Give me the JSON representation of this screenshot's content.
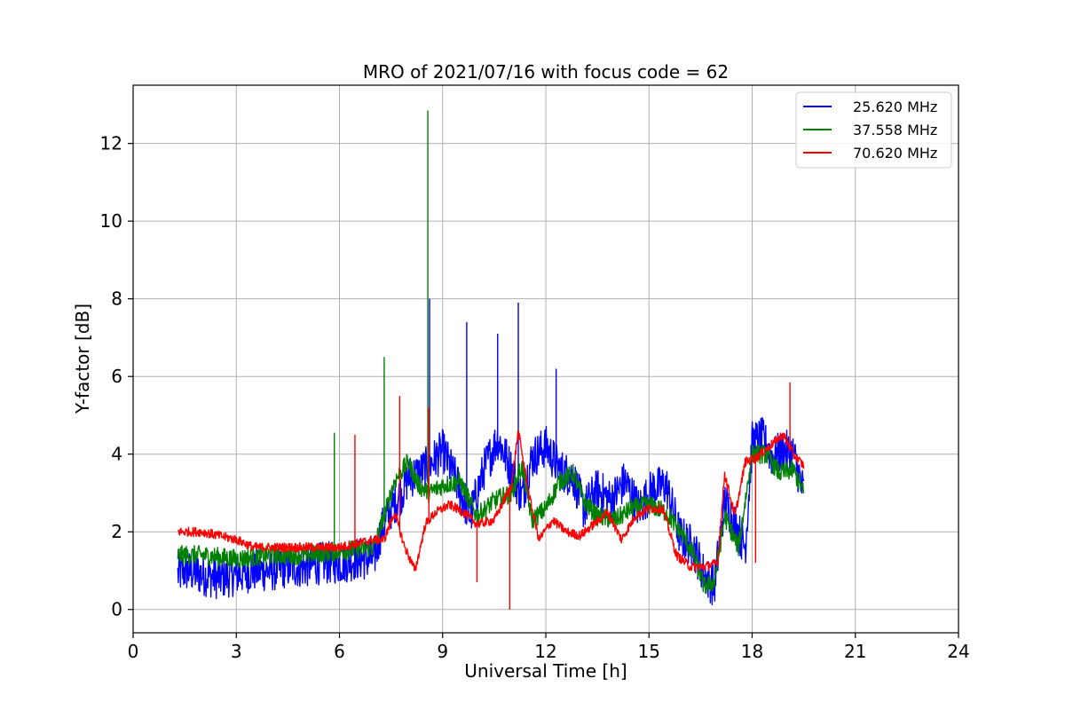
{
  "chart_data": {
    "type": "line",
    "title": "MRO of 2021/07/16 with focus code = 62",
    "xlabel": "Universal Time [h]",
    "ylabel": "Y-factor [dB]",
    "xlim": [
      0,
      24
    ],
    "ylim": [
      -0.6,
      13.5
    ],
    "xticks": [
      0,
      3,
      6,
      9,
      12,
      15,
      18,
      21,
      24
    ],
    "yticks": [
      0,
      2,
      4,
      6,
      8,
      10,
      12
    ],
    "grid": true,
    "legend_position": "top-right",
    "series": [
      {
        "name": "25.620 MHz",
        "color": "#0000ff",
        "noise": 0.55,
        "x": [
          1.3,
          1.5,
          2.0,
          2.5,
          3.0,
          3.5,
          4.0,
          4.5,
          5.0,
          5.5,
          6.0,
          6.5,
          7.0,
          7.2,
          7.5,
          7.8,
          8.0,
          8.3,
          8.6,
          9.0,
          9.4,
          9.8,
          10.2,
          10.6,
          11.0,
          11.3,
          11.6,
          12.0,
          12.4,
          12.8,
          13.1,
          13.5,
          13.9,
          14.3,
          14.7,
          15.1,
          15.5,
          15.9,
          16.3,
          16.6,
          16.9,
          17.2,
          17.5,
          17.8,
          18.0,
          18.3,
          18.6,
          18.9,
          19.2,
          19.5
        ],
        "y": [
          0.9,
          1.0,
          0.9,
          0.8,
          0.9,
          1.0,
          1.0,
          1.1,
          1.1,
          1.2,
          1.2,
          1.3,
          1.3,
          2.0,
          2.6,
          3.0,
          3.4,
          3.5,
          3.7,
          4.1,
          3.3,
          2.4,
          3.6,
          4.4,
          3.6,
          2.9,
          3.9,
          4.2,
          3.6,
          3.4,
          2.6,
          3.1,
          2.8,
          3.3,
          2.6,
          3.1,
          3.2,
          1.9,
          1.6,
          0.9,
          0.6,
          2.8,
          2.2,
          1.6,
          4.3,
          4.4,
          3.9,
          4.1,
          4.0,
          3.0
        ]
      },
      {
        "name": "37.558 MHz",
        "color": "#008000",
        "noise": 0.25,
        "x": [
          1.3,
          2.0,
          3.0,
          4.0,
          5.0,
          6.0,
          7.0,
          7.3,
          7.6,
          8.0,
          8.3,
          8.6,
          9.0,
          9.5,
          10.0,
          10.5,
          11.0,
          11.3,
          11.6,
          12.0,
          12.4,
          12.8,
          13.1,
          13.5,
          14.0,
          14.5,
          15.0,
          15.5,
          16.0,
          16.3,
          16.6,
          16.9,
          17.2,
          17.6,
          18.0,
          18.4,
          18.8,
          19.2,
          19.5
        ],
        "y": [
          1.4,
          1.4,
          1.3,
          1.4,
          1.4,
          1.5,
          1.6,
          2.4,
          3.3,
          3.8,
          3.2,
          3.0,
          3.2,
          3.3,
          2.4,
          2.8,
          3.0,
          3.7,
          2.3,
          2.6,
          3.3,
          3.5,
          2.8,
          2.4,
          2.3,
          2.6,
          2.7,
          2.5,
          1.9,
          1.4,
          0.6,
          0.7,
          2.4,
          1.6,
          4.0,
          4.0,
          3.5,
          3.6,
          3.0
        ]
      },
      {
        "name": "70.620 MHz",
        "color": "#ff0000",
        "noise": 0.12,
        "x": [
          1.3,
          2.0,
          3.0,
          3.5,
          4.0,
          5.0,
          6.0,
          7.0,
          7.3,
          7.6,
          7.9,
          8.2,
          8.5,
          8.8,
          9.2,
          9.6,
          10.0,
          10.5,
          11.0,
          11.2,
          11.5,
          11.8,
          12.2,
          12.6,
          13.0,
          13.4,
          13.8,
          14.2,
          14.6,
          15.0,
          15.4,
          15.8,
          16.2,
          16.6,
          17.0,
          17.2,
          17.5,
          17.8,
          18.1,
          18.5,
          18.9,
          19.2,
          19.5
        ],
        "y": [
          2.0,
          2.0,
          1.8,
          1.6,
          1.6,
          1.6,
          1.6,
          1.8,
          1.8,
          2.5,
          1.6,
          1.0,
          2.2,
          2.5,
          2.7,
          2.5,
          2.2,
          2.3,
          3.2,
          4.6,
          3.0,
          1.8,
          2.3,
          2.0,
          1.9,
          2.2,
          2.5,
          1.8,
          2.4,
          2.6,
          2.6,
          1.4,
          1.1,
          1.1,
          1.2,
          3.5,
          2.4,
          3.8,
          3.9,
          4.2,
          4.5,
          4.0,
          3.7
        ]
      }
    ],
    "spikes": [
      {
        "series": 1,
        "x": 5.85,
        "y": 4.55
      },
      {
        "series": 1,
        "x": 7.3,
        "y": 6.5
      },
      {
        "series": 1,
        "x": 8.57,
        "y": 12.85
      },
      {
        "series": 0,
        "x": 8.62,
        "y": 8.0
      },
      {
        "series": 0,
        "x": 9.7,
        "y": 7.4
      },
      {
        "series": 0,
        "x": 10.6,
        "y": 7.1
      },
      {
        "series": 0,
        "x": 11.2,
        "y": 7.9
      },
      {
        "series": 0,
        "x": 12.3,
        "y": 6.2
      },
      {
        "series": 2,
        "x": 6.45,
        "y": 4.5
      },
      {
        "series": 2,
        "x": 7.75,
        "y": 5.5
      },
      {
        "series": 2,
        "x": 8.6,
        "y": 5.2
      },
      {
        "series": 2,
        "x": 10.0,
        "y": 0.7
      },
      {
        "series": 2,
        "x": 10.95,
        "y": 0.0
      },
      {
        "series": 2,
        "x": 18.1,
        "y": 1.2
      },
      {
        "series": 2,
        "x": 19.1,
        "y": 5.85
      }
    ]
  }
}
